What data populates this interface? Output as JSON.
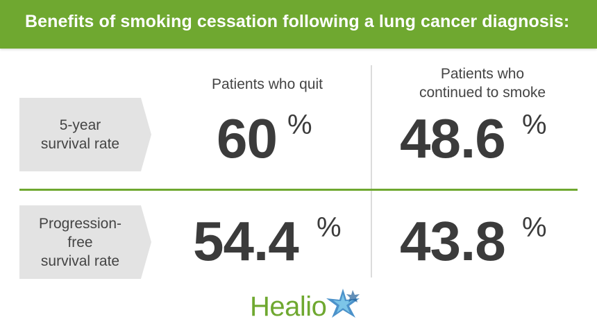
{
  "header": {
    "title": "Benefits of smoking cessation following a lung cancer diagnosis:"
  },
  "columns": {
    "quit": "Patients who quit",
    "continued_line1": "Patients who",
    "continued_line2": "continued to smoke"
  },
  "rows": [
    {
      "label_line1": "5-year",
      "label_line2": "survival rate",
      "quit_value": "60",
      "continued_value": "48.6"
    },
    {
      "label_line1": "Progression-",
      "label_line2": "free",
      "label_line3": "survival rate",
      "quit_value": "54.4",
      "continued_value": "43.8"
    }
  ],
  "unit": "%",
  "logo": {
    "text": "Healio"
  },
  "colors": {
    "brand_green": "#6fa830",
    "label_box_gray": "#e3e3e3",
    "text_dark": "#3b3b3b",
    "star_blue": "#2d7fc1"
  }
}
